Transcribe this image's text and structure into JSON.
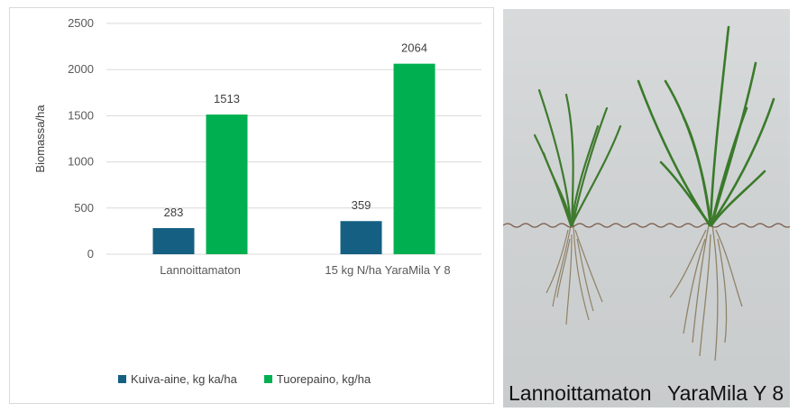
{
  "chart_data": {
    "type": "bar",
    "categories": [
      "Lannoittamaton",
      "15 kg N/ha YaraMila Y 8"
    ],
    "series": [
      {
        "name": "Kuiva-aine, kg ka/ha",
        "values": [
          283,
          359
        ],
        "color": "#156082"
      },
      {
        "name": "Tuorepaino, kg/ha",
        "values": [
          1513,
          2064
        ],
        "color": "#00b050"
      }
    ],
    "ylabel": "Biomassa/ha",
    "ylim": [
      0,
      2500
    ],
    "yticks": [
      0,
      500,
      1000,
      1500,
      2000,
      2500
    ],
    "grid": true,
    "legend_position": "bottom"
  },
  "photo": {
    "captions": [
      "Lannoittamaton",
      "YaraMila Y 8"
    ]
  }
}
